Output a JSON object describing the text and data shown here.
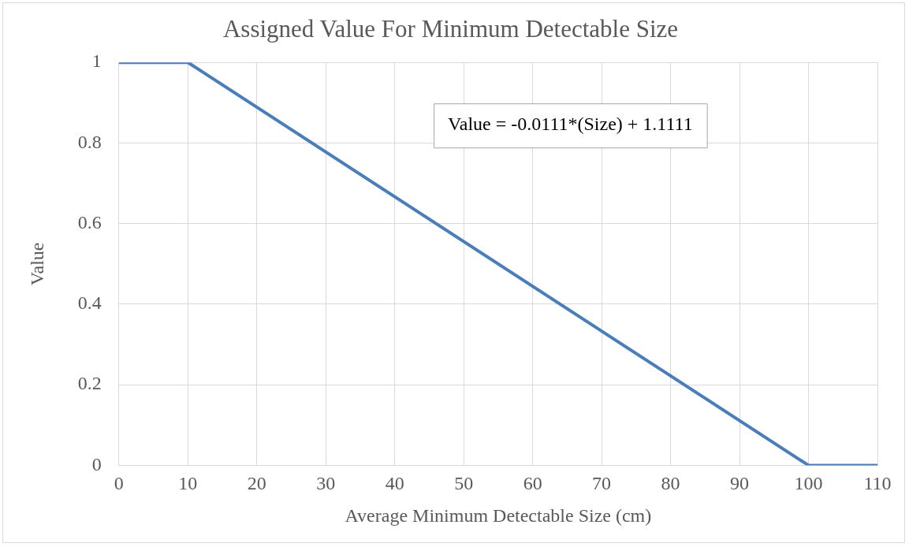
{
  "chart_data": {
    "type": "line",
    "title": "Assigned Value For Minimum Detectable Size",
    "xlabel": "Average Minimum Detectable Size (cm)",
    "ylabel": "Value",
    "x": [
      0,
      10,
      100,
      110
    ],
    "series": [
      {
        "color": "#4a7ebb",
        "values": [
          1,
          1,
          0,
          0
        ]
      }
    ],
    "xlim": [
      0,
      110
    ],
    "xticks": [
      0,
      10,
      20,
      30,
      40,
      50,
      60,
      70,
      80,
      90,
      100,
      110
    ],
    "ylim": [
      0,
      1
    ],
    "yticks": [
      0,
      0.2,
      0.4,
      0.6,
      0.8,
      1
    ],
    "grid": true,
    "legend": false,
    "marker": "none",
    "line_style": "solid",
    "annotations": [
      "Value = -0.0111*(Size) + 1.1111"
    ]
  }
}
